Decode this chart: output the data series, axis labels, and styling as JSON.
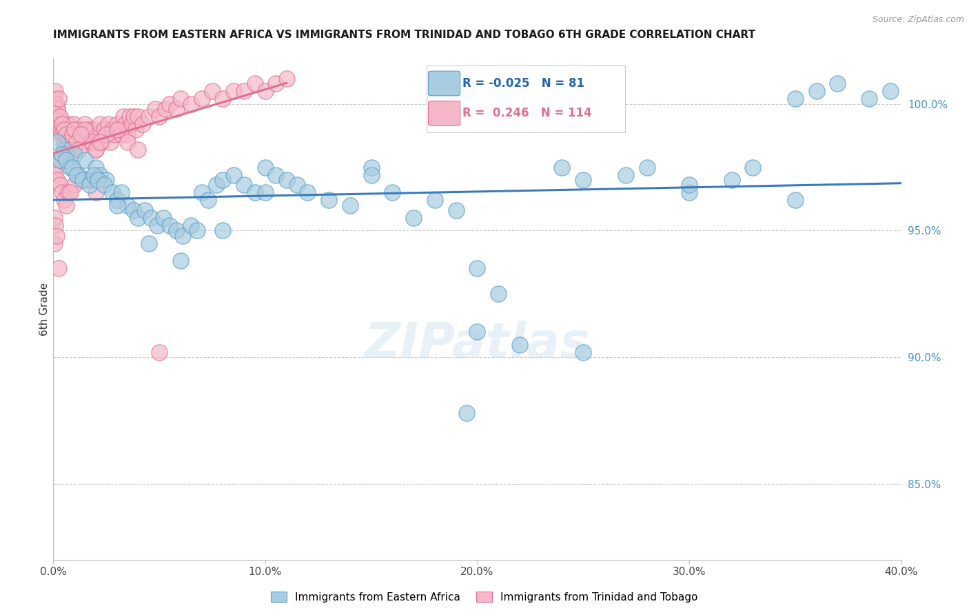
{
  "title": "IMMIGRANTS FROM EASTERN AFRICA VS IMMIGRANTS FROM TRINIDAD AND TOBAGO 6TH GRADE CORRELATION CHART",
  "source": "Source: ZipAtlas.com",
  "ylabel": "6th Grade",
  "right_ytick_labels": [
    "100.0%",
    "95.0%",
    "90.0%",
    "85.0%"
  ],
  "right_ytick_vals": [
    100.0,
    95.0,
    90.0,
    85.0
  ],
  "legend_blue_r": "-0.025",
  "legend_blue_n": "81",
  "legend_pink_r": "0.246",
  "legend_pink_n": "114",
  "legend_label_blue": "Immigrants from Eastern Africa",
  "legend_label_pink": "Immigrants from Trinidad and Tobago",
  "blue_color": "#a8cce0",
  "blue_edge": "#5a9ec9",
  "pink_color": "#f5b8c8",
  "pink_edge": "#e07090",
  "blue_line_color": "#3a7bbf",
  "pink_line_color": "#e07090",
  "blue_scatter_x": [
    0.3,
    0.5,
    0.8,
    1.0,
    1.2,
    1.5,
    1.8,
    2.0,
    2.2,
    2.5,
    0.2,
    0.4,
    0.6,
    0.9,
    1.1,
    1.4,
    1.7,
    1.9,
    2.1,
    2.4,
    2.8,
    3.0,
    3.2,
    3.5,
    3.8,
    4.0,
    4.3,
    4.6,
    4.9,
    5.2,
    5.5,
    5.8,
    6.1,
    6.5,
    6.8,
    7.0,
    7.3,
    7.7,
    8.0,
    8.5,
    9.0,
    9.5,
    10.0,
    10.5,
    11.0,
    11.5,
    12.0,
    13.0,
    14.0,
    15.0,
    16.0,
    17.0,
    18.0,
    19.0,
    20.0,
    21.0,
    22.0,
    24.0,
    25.0,
    27.0,
    28.0,
    30.0,
    32.0,
    33.0,
    35.0,
    36.0,
    37.0,
    38.5,
    39.5,
    3.0,
    4.5,
    6.0,
    8.0,
    10.0,
    15.0,
    20.0,
    25.0,
    30.0,
    35.0,
    19.5
  ],
  "blue_scatter_y": [
    97.8,
    98.2,
    97.5,
    98.0,
    97.2,
    97.8,
    97.0,
    97.5,
    97.2,
    97.0,
    98.5,
    98.0,
    97.8,
    97.5,
    97.2,
    97.0,
    96.8,
    97.2,
    97.0,
    96.8,
    96.5,
    96.2,
    96.5,
    96.0,
    95.8,
    95.5,
    95.8,
    95.5,
    95.2,
    95.5,
    95.2,
    95.0,
    94.8,
    95.2,
    95.0,
    96.5,
    96.2,
    96.8,
    97.0,
    97.2,
    96.8,
    96.5,
    97.5,
    97.2,
    97.0,
    96.8,
    96.5,
    96.2,
    96.0,
    97.5,
    96.5,
    95.5,
    96.2,
    95.8,
    93.5,
    92.5,
    90.5,
    97.5,
    97.0,
    97.2,
    97.5,
    96.5,
    97.0,
    97.5,
    100.2,
    100.5,
    100.8,
    100.2,
    100.5,
    96.0,
    94.5,
    93.8,
    95.0,
    96.5,
    97.2,
    91.0,
    90.2,
    96.8,
    96.2,
    87.8
  ],
  "pink_scatter_x": [
    0.05,
    0.1,
    0.15,
    0.2,
    0.25,
    0.3,
    0.35,
    0.4,
    0.45,
    0.5,
    0.55,
    0.6,
    0.65,
    0.7,
    0.75,
    0.8,
    0.85,
    0.9,
    0.95,
    1.0,
    1.1,
    1.2,
    1.3,
    1.4,
    1.5,
    1.6,
    1.7,
    1.8,
    1.9,
    2.0,
    2.1,
    2.2,
    2.3,
    2.4,
    2.5,
    2.6,
    2.7,
    2.8,
    2.9,
    3.0,
    3.1,
    3.2,
    3.3,
    3.4,
    3.5,
    3.6,
    3.7,
    3.8,
    3.9,
    4.0,
    4.2,
    4.5,
    4.8,
    5.0,
    5.3,
    5.5,
    5.8,
    6.0,
    6.5,
    7.0,
    7.5,
    8.0,
    8.5,
    9.0,
    9.5,
    10.0,
    10.5,
    11.0,
    0.05,
    0.1,
    0.15,
    0.2,
    0.25,
    0.3,
    0.4,
    0.5,
    0.6,
    0.7,
    0.8,
    0.9,
    1.0,
    1.1,
    1.2,
    1.5,
    1.8,
    2.0,
    2.5,
    3.0,
    3.5,
    4.0,
    1.3,
    0.35,
    0.65,
    2.2,
    0.05,
    0.1,
    0.2,
    0.3,
    0.4,
    0.5,
    0.6,
    0.7,
    1.0,
    1.5,
    2.0,
    0.05,
    0.1,
    0.8,
    5.0,
    0.05,
    0.15,
    0.25
  ],
  "pink_scatter_y": [
    99.0,
    99.5,
    99.2,
    99.8,
    99.5,
    99.2,
    99.0,
    98.8,
    99.2,
    98.5,
    99.0,
    98.8,
    98.5,
    99.2,
    98.8,
    99.0,
    98.5,
    98.8,
    99.2,
    98.5,
    98.8,
    99.0,
    98.5,
    98.8,
    99.2,
    98.8,
    99.0,
    98.5,
    99.0,
    98.2,
    98.8,
    99.2,
    98.5,
    99.0,
    98.8,
    99.2,
    98.5,
    99.0,
    98.8,
    99.2,
    99.0,
    98.8,
    99.5,
    99.2,
    98.8,
    99.5,
    99.2,
    99.5,
    99.0,
    99.5,
    99.2,
    99.5,
    99.8,
    99.5,
    99.8,
    100.0,
    99.8,
    100.2,
    100.0,
    100.2,
    100.5,
    100.2,
    100.5,
    100.5,
    100.8,
    100.5,
    100.8,
    101.0,
    100.2,
    100.5,
    100.0,
    99.8,
    100.2,
    99.5,
    99.2,
    99.0,
    98.8,
    98.5,
    98.2,
    98.8,
    99.0,
    98.5,
    98.2,
    99.0,
    98.5,
    98.2,
    98.8,
    99.0,
    98.5,
    98.2,
    98.8,
    97.8,
    98.0,
    98.5,
    97.5,
    97.2,
    97.0,
    96.8,
    96.5,
    96.2,
    96.0,
    96.5,
    96.8,
    97.0,
    96.5,
    95.5,
    95.2,
    96.5,
    90.2,
    94.5,
    94.8,
    93.5
  ]
}
